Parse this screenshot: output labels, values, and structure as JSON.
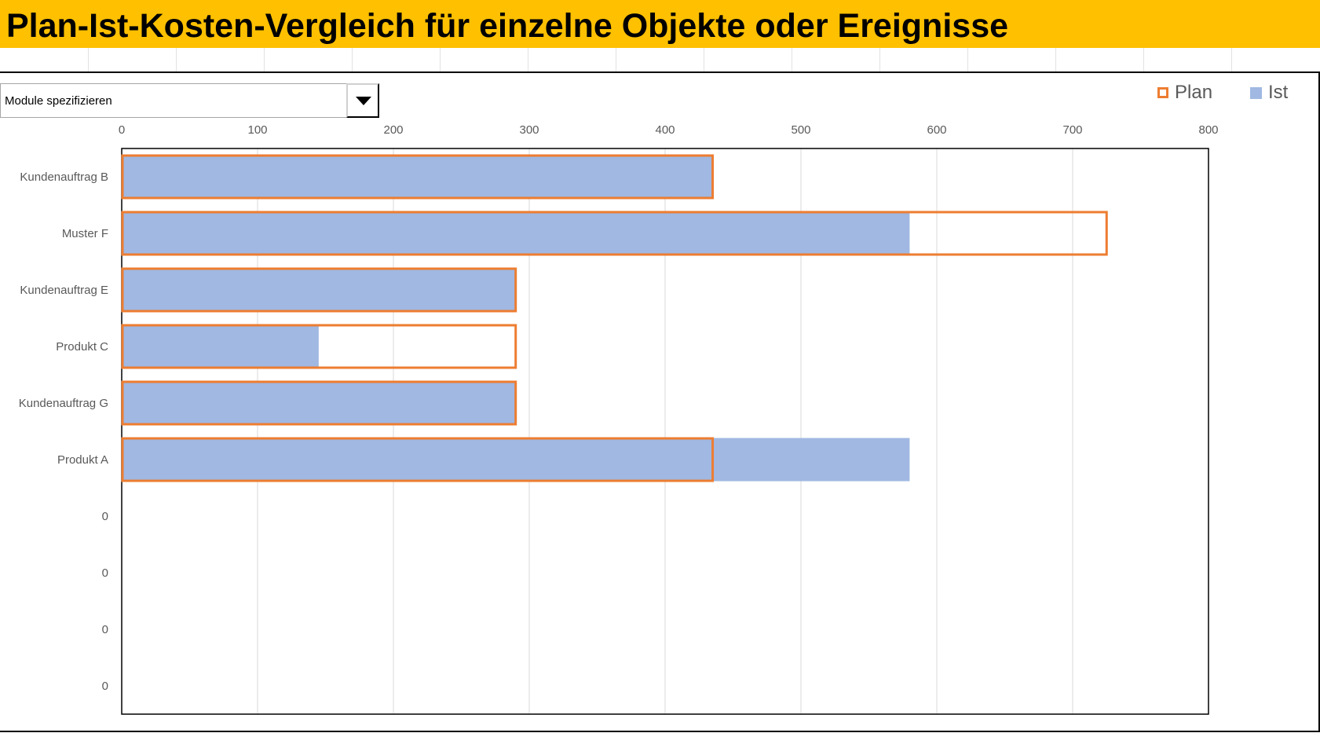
{
  "header": {
    "title": "Plan-Ist-Kosten-Vergleich für einzelne Objekte oder Ereignisse"
  },
  "dropdown": {
    "selected": "Module spezifizieren",
    "icon": "triangle-down-icon"
  },
  "legend": {
    "plan_label": "Plan",
    "ist_label": "Ist"
  },
  "colors": {
    "title_bg": "#ffc000",
    "plan_outline": "#ed7d31",
    "ist_fill": "#a0b8e2",
    "grid": "#d9d9d9",
    "text": "#595959"
  },
  "chart_data": {
    "type": "bar",
    "orientation": "horizontal",
    "title": "",
    "xlabel": "",
    "ylabel": "",
    "xlim": [
      0,
      800
    ],
    "x_ticks": [
      0,
      100,
      200,
      300,
      400,
      500,
      600,
      700,
      800
    ],
    "grid": true,
    "legend_position": "top-right",
    "categories": [
      "Kundenauftrag B",
      "Muster F",
      "Kundenauftrag E",
      "Produkt C",
      "Kundenauftrag G",
      "Produkt A",
      "0",
      "0",
      "0",
      "0"
    ],
    "series": [
      {
        "name": "Plan",
        "style": "outline",
        "values": [
          435,
          725,
          290,
          290,
          290,
          435,
          0,
          0,
          0,
          0
        ]
      },
      {
        "name": "Ist",
        "style": "fill",
        "values": [
          435,
          580,
          290,
          145,
          290,
          580,
          0,
          0,
          0,
          0
        ]
      }
    ]
  }
}
